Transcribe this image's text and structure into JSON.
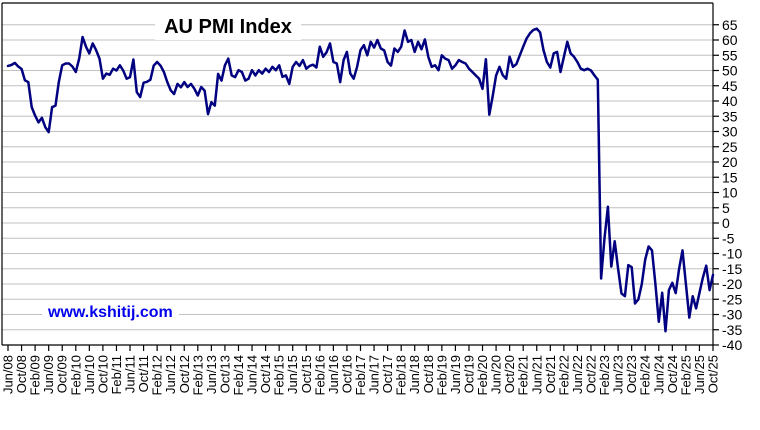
{
  "title": "AU PMI Index",
  "watermark": "www.kshitij.com",
  "chart_data": {
    "type": "line",
    "title": "AU PMI Index",
    "series_name": "AU PMI Index",
    "frequency": "monthly",
    "x_start": "Jun/08",
    "x_end": "Oct/25",
    "ylim": [
      -40,
      65
    ],
    "grid": true,
    "y_axis_side": "right",
    "x_tick_every_months": 4,
    "y_tick_values": [
      65,
      60,
      55,
      50,
      45,
      40,
      35,
      30,
      25,
      20,
      15,
      10,
      5,
      0,
      -5,
      -10,
      -15,
      -20,
      -25,
      -30,
      -35,
      -40
    ],
    "x_tick_labels": [
      "Jun/08",
      "Oct/08",
      "Feb/09",
      "Jun/09",
      "Oct/09",
      "Feb/10",
      "Jun/10",
      "Oct/10",
      "Feb/11",
      "Jun/11",
      "Oct/11",
      "Feb/12",
      "Jun/12",
      "Oct/12",
      "Feb/13",
      "Jun/13",
      "Oct/13",
      "Feb/14",
      "Jun/14",
      "Oct/14",
      "Feb/15",
      "Jun/15",
      "Oct/15",
      "Feb/16",
      "Jun/16",
      "Oct/16",
      "Feb/17",
      "Jun/17",
      "Oct/17",
      "Feb/18",
      "Jun/18",
      "Oct/18",
      "Feb/19",
      "Jun/19",
      "Oct/19",
      "Feb/20",
      "Jun/20",
      "Oct/20",
      "Feb/21",
      "Jun/21",
      "Oct/21",
      "Feb/22",
      "Jun/22",
      "Oct/22",
      "Feb/23",
      "Jun/23",
      "Oct/23",
      "Feb/24",
      "Jun/24",
      "Oct/24",
      "Feb/25",
      "Jun/25",
      "Oct/25"
    ],
    "values": [
      51.5,
      51.8,
      52.5,
      51.3,
      50.5,
      46.8,
      46.2,
      38.0,
      35.2,
      33.0,
      34.5,
      31.4,
      29.8,
      38.0,
      38.5,
      46.2,
      51.7,
      52.3,
      52.3,
      51.3,
      49.5,
      53.9,
      61.0,
      57.8,
      55.6,
      58.9,
      56.7,
      53.9,
      47.3,
      49.0,
      48.6,
      50.6,
      50.0,
      51.7,
      50.0,
      47.3,
      47.8,
      53.6,
      42.9,
      41.3,
      46.0,
      46.3,
      47.0,
      51.6,
      52.8,
      51.6,
      49.5,
      46.2,
      43.5,
      42.3,
      45.6,
      44.5,
      46.2,
      44.6,
      45.6,
      44.0,
      41.8,
      44.6,
      43.4,
      35.7,
      39.6,
      38.5,
      48.9,
      46.7,
      51.7,
      53.9,
      48.4,
      47.8,
      50.1,
      49.5,
      46.7,
      47.3,
      50.1,
      48.4,
      50.1,
      49.0,
      50.6,
      49.5,
      51.2,
      50.1,
      51.7,
      47.9,
      48.4,
      45.6,
      51.2,
      52.8,
      51.5,
      53.4,
      50.6,
      51.5,
      51.9,
      51.0,
      57.8,
      54.5,
      56.0,
      58.9,
      52.8,
      52.3,
      46.2,
      53.4,
      56.1,
      49.0,
      47.3,
      51.2,
      56.7,
      58.3,
      55.0,
      59.4,
      57.5,
      60.0,
      57.2,
      56.6,
      52.8,
      51.6,
      57.2,
      56.1,
      57.8,
      63.1,
      59.4,
      60.0,
      56.1,
      59.4,
      57.0,
      60.2,
      54.5,
      51.2,
      51.7,
      50.1,
      55.0,
      53.9,
      53.4,
      50.6,
      51.7,
      53.4,
      52.8,
      52.3,
      50.6,
      49.5,
      48.4,
      47.3,
      44.0,
      53.7,
      35.5,
      41.6,
      48.4,
      51.2,
      48.4,
      47.3,
      54.5,
      51.2,
      52.1,
      55.0,
      57.8,
      60.5,
      62.2,
      63.3,
      63.7,
      62.5,
      56.7,
      52.8,
      51.0,
      55.6,
      56.1,
      49.5,
      54.5,
      59.4,
      55.6,
      54.5,
      52.8,
      50.6,
      50.1,
      50.6,
      50.0,
      48.4,
      47.0,
      -18.2,
      -5.0,
      5.3,
      -14.3,
      -6.0,
      -15.0,
      -23.1,
      -24.0,
      -13.8,
      -14.5,
      -26.4,
      -25.0,
      -20.0,
      -12.0,
      -7.7,
      -9.0,
      -20.0,
      -32.4,
      -22.9,
      -35.5,
      -22.0,
      -19.6,
      -23.0,
      -15.0,
      -9.0,
      -20.0,
      -31.0,
      -24.0,
      -28.0,
      -23.0,
      -18.0,
      -14.0,
      -22.0,
      -17.0
    ],
    "colors": {
      "line": "#000080",
      "grid": "#c0c0c0",
      "axis": "#000000",
      "tick_label": "#000000",
      "title": "#000000",
      "watermark": "#0000ee",
      "background": "#ffffff"
    }
  }
}
